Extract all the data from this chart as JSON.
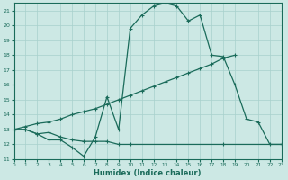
{
  "xlabel": "Humidex (Indice chaleur)",
  "xlim": [
    0,
    23
  ],
  "ylim": [
    11,
    21.5
  ],
  "yticks": [
    11,
    12,
    13,
    14,
    15,
    16,
    17,
    18,
    19,
    20,
    21
  ],
  "xticks": [
    0,
    1,
    2,
    3,
    4,
    5,
    6,
    7,
    8,
    9,
    10,
    11,
    12,
    13,
    14,
    15,
    16,
    17,
    18,
    19,
    20,
    21,
    22,
    23
  ],
  "bg_color": "#cce8e4",
  "grid_color": "#a8d0cc",
  "line_color": "#1a6b5a",
  "line1_x": [
    0,
    1,
    2,
    3,
    4,
    5,
    6,
    7,
    8,
    9,
    10,
    11,
    12,
    13,
    14,
    15,
    16,
    17,
    18,
    19,
    20,
    21,
    22,
    23
  ],
  "line1_y": [
    13.0,
    13.0,
    12.7,
    12.3,
    12.3,
    11.8,
    11.2,
    12.5,
    15.2,
    13.0,
    19.8,
    20.7,
    21.3,
    21.5,
    21.3,
    20.3,
    20.7,
    18.0,
    17.9,
    16.0,
    13.7,
    13.5,
    12.0,
    12.0
  ],
  "line2_x": [
    0,
    1,
    2,
    3,
    4,
    5,
    6,
    7,
    8,
    9,
    10,
    18,
    23
  ],
  "line2_y": [
    13.0,
    13.0,
    12.7,
    12.8,
    12.5,
    12.3,
    12.2,
    12.2,
    12.2,
    12.0,
    12.0,
    12.0,
    12.0
  ],
  "line3_x": [
    0,
    1,
    2,
    3,
    4,
    5,
    6,
    7,
    8,
    9,
    10,
    11,
    12,
    13,
    14,
    15,
    16,
    17,
    18,
    19
  ],
  "line3_y": [
    13.0,
    13.2,
    13.4,
    13.5,
    13.7,
    14.0,
    14.2,
    14.4,
    14.7,
    15.0,
    15.3,
    15.6,
    15.9,
    16.2,
    16.5,
    16.8,
    17.1,
    17.4,
    17.8,
    18.0
  ]
}
